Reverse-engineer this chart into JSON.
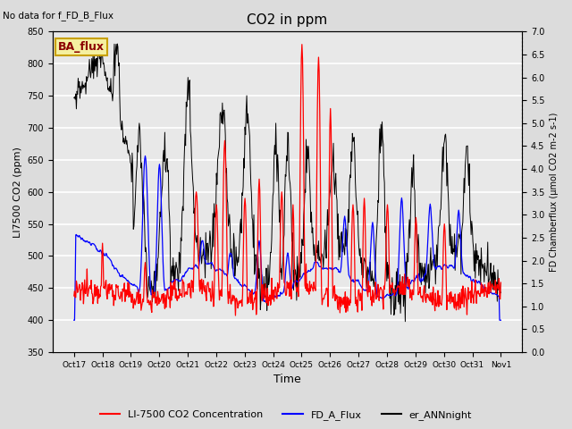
{
  "title": "CO2 in ppm",
  "top_left_text": "No data for f_FD_B_Flux",
  "ba_flux_label": "BA_flux",
  "ylabel_left": "LI7500 CO2 (ppm)",
  "ylabel_right": "FD Chamberflux (μmol CO2 m-2 s-1)",
  "xlabel": "Time",
  "ylim_left": [
    350,
    850
  ],
  "ylim_right": [
    0.0,
    7.0
  ],
  "yticks_left": [
    350,
    400,
    450,
    500,
    550,
    600,
    650,
    700,
    750,
    800,
    850
  ],
  "yticks_right": [
    0.0,
    0.5,
    1.0,
    1.5,
    2.0,
    2.5,
    3.0,
    3.5,
    4.0,
    4.5,
    5.0,
    5.5,
    6.0,
    6.5,
    7.0
  ],
  "xtick_labels": [
    "Oct 17",
    "Oct 18",
    "Oct 19",
    "Oct 20",
    "Oct 21",
    "Oct 22",
    "Oct 23",
    "Oct 24",
    "Oct 25",
    "Oct 26",
    "Oct 27",
    "Oct 28",
    "Oct 29",
    "Oct 30",
    "Oct 31",
    "Nov 1"
  ],
  "line_red_label": "LI-7500 CO2 Concentration",
  "line_blue_label": "FD_A_Flux",
  "line_black_label": "er_ANNnight",
  "bg_color": "#dcdcdc",
  "inner_bg_color": "#e8e8e8",
  "grid_color": "white",
  "n_points": 720
}
